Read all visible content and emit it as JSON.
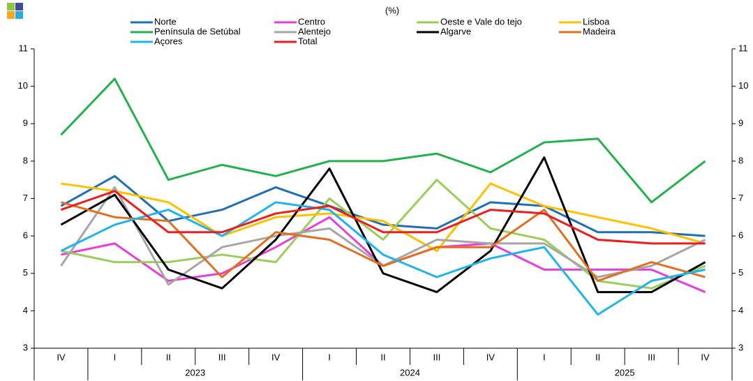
{
  "chart_data": {
    "type": "line",
    "subtitle": "(%)",
    "categories": [
      "IV",
      "I",
      "II",
      "III",
      "IV",
      "I",
      "II",
      "III",
      "IV",
      "I",
      "II",
      "III",
      "IV"
    ],
    "years": [
      null,
      "2023",
      "2023",
      "2023",
      "2023",
      "2024",
      "2024",
      "2024",
      "2024",
      "2025",
      "2025",
      "2025",
      "2025"
    ],
    "ylim": [
      3,
      11
    ],
    "yticks": [
      3,
      4,
      5,
      6,
      7,
      8,
      9,
      10,
      11
    ],
    "secondary_tick_labels": true,
    "series": [
      {
        "name": "Norte",
        "color": "#1f6fb5",
        "values": [
          6.8,
          7.6,
          6.4,
          6.7,
          7.3,
          6.8,
          6.3,
          6.2,
          6.9,
          6.8,
          6.1,
          6.1,
          6.0
        ]
      },
      {
        "name": "Centro",
        "color": "#e83ed8",
        "values": [
          5.5,
          5.8,
          4.8,
          5.0,
          5.7,
          6.5,
          5.2,
          5.7,
          5.8,
          5.1,
          5.1,
          5.1,
          4.5
        ]
      },
      {
        "name": "Oeste e Vale do tejo",
        "color": "#9acd5a",
        "values": [
          5.6,
          5.3,
          5.3,
          5.5,
          5.3,
          7.0,
          5.9,
          7.5,
          6.2,
          5.9,
          4.8,
          4.6,
          5.2
        ]
      },
      {
        "name": "Lisboa",
        "color": "#ffc000",
        "values": [
          7.4,
          7.2,
          6.9,
          6.0,
          6.5,
          6.6,
          6.4,
          5.6,
          7.4,
          6.8,
          6.5,
          6.2,
          5.8
        ]
      },
      {
        "name": "Península de Setúbal",
        "color": "#22b14c",
        "values": [
          8.7,
          10.2,
          7.5,
          7.9,
          7.6,
          8.0,
          8.0,
          8.2,
          7.7,
          8.5,
          8.6,
          6.9,
          8.0
        ]
      },
      {
        "name": "Alentejo",
        "color": "#a6a6a6",
        "values": [
          5.2,
          7.3,
          4.7,
          5.7,
          6.0,
          6.2,
          5.2,
          5.9,
          5.8,
          5.8,
          4.9,
          5.2,
          5.9
        ]
      },
      {
        "name": "Algarve",
        "color": "#000000",
        "values": [
          6.3,
          7.1,
          5.1,
          4.6,
          5.9,
          7.8,
          5.0,
          4.5,
          5.6,
          8.1,
          4.5,
          4.5,
          5.3
        ]
      },
      {
        "name": "Madeira",
        "color": "#e07020",
        "values": [
          6.9,
          6.5,
          6.4,
          4.9,
          6.1,
          5.9,
          5.2,
          5.7,
          5.7,
          6.7,
          4.8,
          5.3,
          4.9
        ]
      },
      {
        "name": "Açores",
        "color": "#1fb4ea",
        "values": [
          5.6,
          6.3,
          6.7,
          6.0,
          6.9,
          6.7,
          5.5,
          4.9,
          5.4,
          5.7,
          3.9,
          4.8,
          5.1
        ]
      },
      {
        "name": "Total",
        "color": "#ee1c1c",
        "values": [
          6.7,
          7.2,
          6.1,
          6.1,
          6.6,
          6.8,
          6.1,
          6.1,
          6.7,
          6.6,
          5.9,
          5.8,
          5.8
        ]
      }
    ]
  }
}
